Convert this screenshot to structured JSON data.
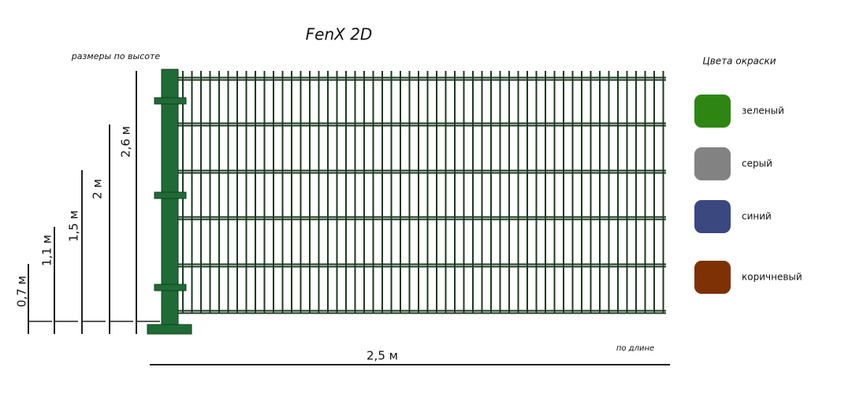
{
  "title": "FenX 2D",
  "height_caption": "размеры по высоте",
  "heights": [
    "0,7 м",
    "1,1 м",
    "1,5 м",
    "2 м",
    "2,6 м"
  ],
  "length_caption": "по длине",
  "length": "2,5 м",
  "palette": {
    "title": "Цвета окраски",
    "items": [
      {
        "label": "зеленый",
        "color": "#2e8512"
      },
      {
        "label": "серый",
        "color": "#828282"
      },
      {
        "label": "синий",
        "color": "#3b4880"
      },
      {
        "label": "коричневый",
        "color": "#7d3104"
      }
    ]
  }
}
